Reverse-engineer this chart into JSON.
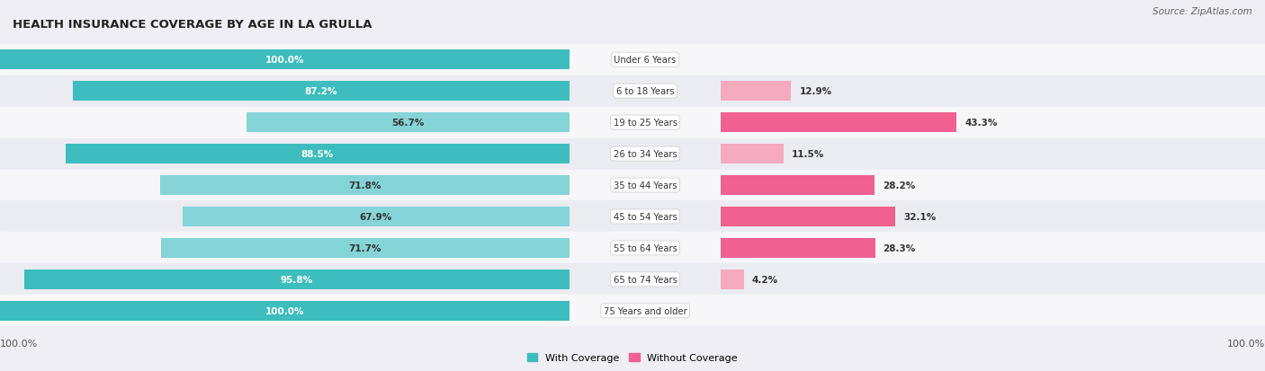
{
  "title": "HEALTH INSURANCE COVERAGE BY AGE IN LA GRULLA",
  "source": "Source: ZipAtlas.com",
  "categories": [
    "Under 6 Years",
    "6 to 18 Years",
    "19 to 25 Years",
    "26 to 34 Years",
    "35 to 44 Years",
    "45 to 54 Years",
    "55 to 64 Years",
    "65 to 74 Years",
    "75 Years and older"
  ],
  "with_coverage": [
    100.0,
    87.2,
    56.7,
    88.5,
    71.8,
    67.9,
    71.7,
    95.8,
    100.0
  ],
  "without_coverage": [
    0.0,
    12.9,
    43.3,
    11.5,
    28.2,
    32.1,
    28.3,
    4.2,
    0.0
  ],
  "color_with_dark": "#3DBDBD",
  "color_with_light": "#85D4D8",
  "color_without_dark": "#F06090",
  "color_without_light": "#F5AABF",
  "bg_color": "#EEEEF4",
  "row_bg_even": "#F7F7FA",
  "row_bg_odd": "#EBEBF2",
  "label_white": "#ffffff",
  "label_dark": "#333333",
  "title_color": "#222222",
  "source_color": "#666666",
  "bottom_label_color": "#555555",
  "with_threshold": 80,
  "without_threshold": 20,
  "max_val": 100.0
}
